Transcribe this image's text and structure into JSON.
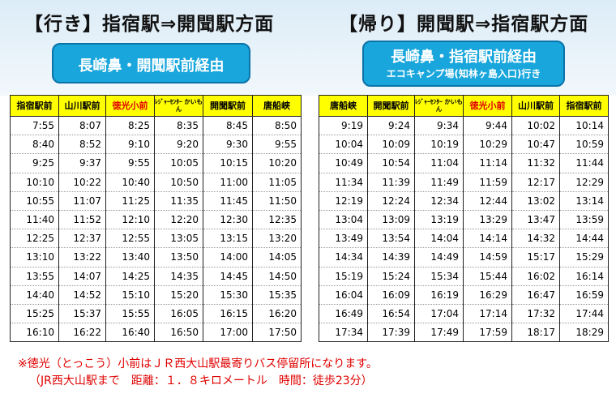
{
  "outbound": {
    "title": "【行き】指宿駅⇒開聞駅方面",
    "route_line1": "長崎鼻・開聞駅前経由",
    "headers": [
      "指宿駅前",
      "山川駅前",
      "徳光小前",
      "ﾚｼﾞｬｰｾﾝﾀｰ かいもん",
      "開聞駅前",
      "唐船峡"
    ],
    "rows": [
      [
        "7:55",
        "8:07",
        "8:25",
        "8:35",
        "8:45",
        "8:50"
      ],
      [
        "8:40",
        "8:52",
        "9:10",
        "9:20",
        "9:30",
        "9:55"
      ],
      [
        "9:25",
        "9:37",
        "9:55",
        "10:05",
        "10:15",
        "10:20"
      ],
      [
        "10:10",
        "10:22",
        "10:40",
        "10:50",
        "11:00",
        "11:05"
      ],
      [
        "10:55",
        "11:07",
        "11:25",
        "11:35",
        "11:45",
        "11:50"
      ],
      [
        "11:40",
        "11:52",
        "12:10",
        "12:20",
        "12:30",
        "12:35"
      ],
      [
        "12:25",
        "12:37",
        "12:55",
        "13:05",
        "13:15",
        "13:20"
      ],
      [
        "13:10",
        "13:22",
        "13:40",
        "13:50",
        "14:00",
        "14:05"
      ],
      [
        "13:55",
        "14:07",
        "14:25",
        "14:35",
        "14:45",
        "14:50"
      ],
      [
        "14:40",
        "14:52",
        "15:10",
        "15:20",
        "15:30",
        "15:35"
      ],
      [
        "15:25",
        "15:37",
        "15:55",
        "16:05",
        "16:15",
        "16:20"
      ],
      [
        "16:10",
        "16:22",
        "16:40",
        "16:50",
        "17:00",
        "17:50"
      ]
    ]
  },
  "inbound": {
    "title": "【帰り】開聞駅⇒指宿駅方面",
    "route_line1": "長崎鼻・指宿駅前経由",
    "route_line2": "エコキャンプ場(知林ヶ島入口)行き",
    "headers": [
      "唐船峡",
      "開聞駅前",
      "ﾚｼﾞｬｰｾﾝﾀｰ かいもん",
      "徳光小前",
      "山川駅前",
      "指宿駅前"
    ],
    "rows": [
      [
        "9:19",
        "9:24",
        "9:34",
        "9:44",
        "10:02",
        "10:14"
      ],
      [
        "10:04",
        "10:09",
        "10:19",
        "10:29",
        "10:47",
        "10:59"
      ],
      [
        "10:49",
        "10:54",
        "11:04",
        "11:14",
        "11:32",
        "11:44"
      ],
      [
        "11:34",
        "11:39",
        "11:49",
        "11:59",
        "12:17",
        "12:29"
      ],
      [
        "12:19",
        "12:24",
        "12:34",
        "12:44",
        "13:02",
        "13:14"
      ],
      [
        "13:04",
        "13:09",
        "13:19",
        "13:29",
        "13:47",
        "13:59"
      ],
      [
        "13:49",
        "13:54",
        "14:04",
        "14:14",
        "14:32",
        "14:44"
      ],
      [
        "14:34",
        "14:39",
        "14:49",
        "14:59",
        "15:17",
        "15:29"
      ],
      [
        "15:19",
        "15:24",
        "15:34",
        "15:44",
        "16:02",
        "16:14"
      ],
      [
        "16:04",
        "16:09",
        "16:19",
        "16:29",
        "16:47",
        "16:59"
      ],
      [
        "16:49",
        "16:54",
        "17:04",
        "17:14",
        "17:32",
        "17:44"
      ],
      [
        "17:34",
        "17:39",
        "17:49",
        "17:59",
        "18:17",
        "18:29"
      ]
    ]
  },
  "notes": {
    "line1": "※徳光（とっこう）小前はＪＲ西大山駅最寄りバス停留所になります。",
    "line2": "（JR西大山駅まで　距離：１．８キロメートル　時間：徒歩23分）"
  },
  "highlight_color": "#e00000",
  "header_bg": "#ffff00",
  "route_box_color": "#18a6dc"
}
